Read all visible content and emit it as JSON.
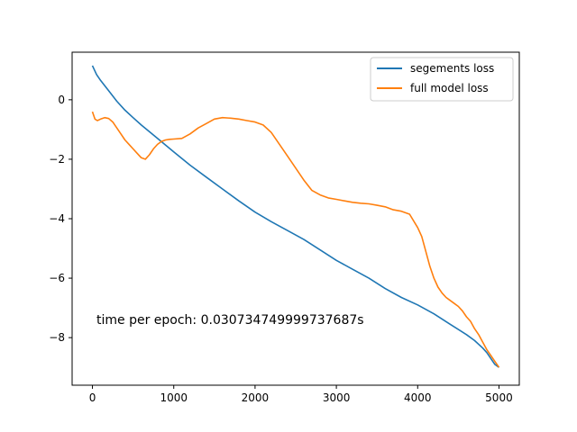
{
  "chart_data": {
    "type": "line",
    "title": "",
    "xlabel": "",
    "ylabel": "",
    "xlim": [
      -250,
      5250
    ],
    "ylim": [
      -9.6,
      1.6
    ],
    "xticks": [
      0,
      1000,
      2000,
      3000,
      4000,
      5000
    ],
    "yticks": [
      0,
      -2,
      -4,
      -6,
      -8
    ],
    "grid": false,
    "legend_position": "top-right",
    "annotation": "time per epoch: 0.030734749999737687s",
    "series": [
      {
        "name": "segements loss",
        "color": "#1f77b4",
        "x": [
          0,
          50,
          100,
          200,
          300,
          400,
          500,
          600,
          800,
          1000,
          1200,
          1400,
          1600,
          1800,
          2000,
          2200,
          2400,
          2600,
          2800,
          3000,
          3200,
          3400,
          3600,
          3800,
          4000,
          4200,
          4400,
          4600,
          4700,
          4800,
          4850,
          4900,
          4950,
          5000
        ],
        "y": [
          1.15,
          0.85,
          0.65,
          0.3,
          -0.05,
          -0.35,
          -0.6,
          -0.85,
          -1.3,
          -1.75,
          -2.2,
          -2.6,
          -3.0,
          -3.4,
          -3.78,
          -4.1,
          -4.4,
          -4.7,
          -5.05,
          -5.4,
          -5.7,
          -6.0,
          -6.35,
          -6.65,
          -6.9,
          -7.2,
          -7.55,
          -7.9,
          -8.1,
          -8.35,
          -8.5,
          -8.7,
          -8.9,
          -9.0
        ]
      },
      {
        "name": "full model loss",
        "color": "#ff7f0e",
        "x": [
          0,
          30,
          60,
          100,
          150,
          200,
          250,
          300,
          350,
          400,
          450,
          500,
          550,
          600,
          650,
          700,
          750,
          800,
          850,
          900,
          950,
          1000,
          1100,
          1200,
          1300,
          1400,
          1500,
          1600,
          1700,
          1800,
          1900,
          2000,
          2100,
          2200,
          2300,
          2400,
          2500,
          2600,
          2700,
          2800,
          2900,
          3000,
          3100,
          3200,
          3300,
          3400,
          3500,
          3600,
          3700,
          3800,
          3900,
          4000,
          4050,
          4100,
          4150,
          4200,
          4250,
          4300,
          4350,
          4400,
          4450,
          4500,
          4550,
          4600,
          4650,
          4700,
          4750,
          4800,
          4850,
          4900,
          4950,
          5000
        ],
        "y": [
          -0.4,
          -0.65,
          -0.7,
          -0.65,
          -0.6,
          -0.63,
          -0.75,
          -0.95,
          -1.15,
          -1.35,
          -1.5,
          -1.65,
          -1.8,
          -1.95,
          -2.0,
          -1.85,
          -1.65,
          -1.5,
          -1.4,
          -1.35,
          -1.33,
          -1.32,
          -1.3,
          -1.15,
          -0.95,
          -0.8,
          -0.65,
          -0.6,
          -0.62,
          -0.65,
          -0.7,
          -0.75,
          -0.85,
          -1.1,
          -1.5,
          -1.9,
          -2.3,
          -2.7,
          -3.05,
          -3.2,
          -3.3,
          -3.35,
          -3.4,
          -3.45,
          -3.48,
          -3.5,
          -3.55,
          -3.6,
          -3.7,
          -3.75,
          -3.85,
          -4.3,
          -4.6,
          -5.1,
          -5.6,
          -6.0,
          -6.3,
          -6.5,
          -6.65,
          -6.75,
          -6.85,
          -6.95,
          -7.1,
          -7.3,
          -7.45,
          -7.7,
          -7.9,
          -8.15,
          -8.4,
          -8.6,
          -8.8,
          -9.0
        ]
      }
    ]
  }
}
